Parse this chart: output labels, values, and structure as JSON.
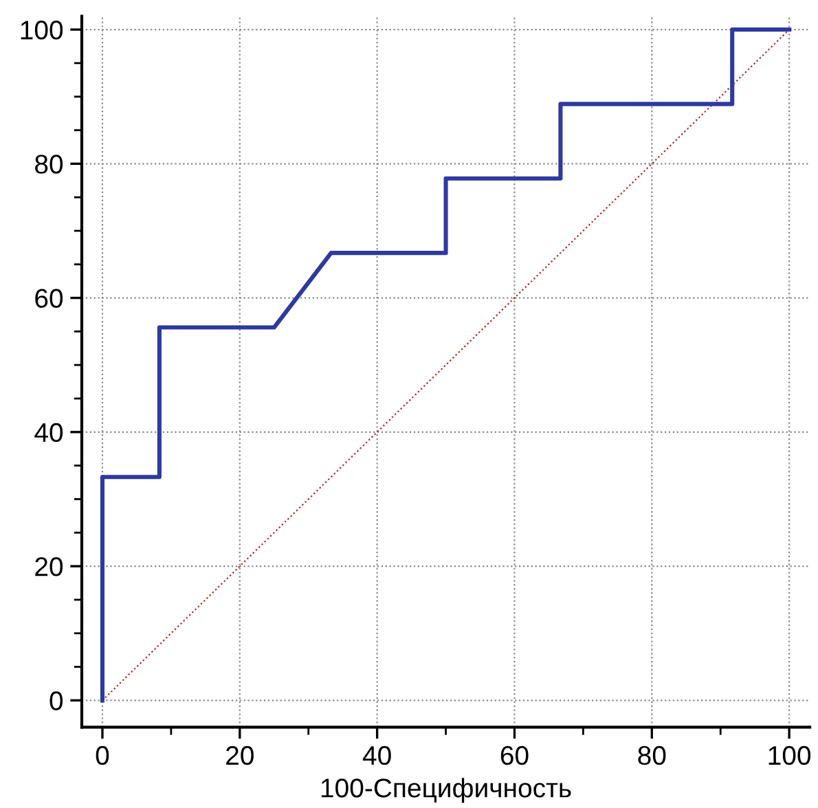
{
  "chart_data": {
    "type": "line",
    "xlabel": "100-Специфичность",
    "series": [
      {
        "color": "#2e3a9e",
        "line_style": "solid",
        "x": [
          0,
          0,
          8.3,
          8.3,
          25,
          33.3,
          50,
          50,
          66.7,
          66.7,
          91.7,
          91.7,
          100
        ],
        "values": [
          0,
          33.3,
          33.3,
          55.6,
          55.6,
          66.7,
          66.7,
          77.8,
          77.8,
          88.9,
          88.9,
          100,
          100
        ]
      },
      {
        "color": "#b22222",
        "line_style": "dotted",
        "x": [
          0,
          100
        ],
        "values": [
          0,
          100
        ]
      }
    ],
    "xlim": [
      -3,
      103
    ],
    "ylim": [
      -4,
      102
    ],
    "xticks": [
      0,
      {
        "value": 10,
        "label": null
      },
      20,
      {
        "value": 30,
        "label": null
      },
      40,
      {
        "value": 50,
        "label": null
      },
      60,
      {
        "value": 70,
        "label": null
      },
      80,
      {
        "value": 90,
        "label": null
      },
      100
    ],
    "yticks": [
      0,
      {
        "value": 5,
        "label": null
      },
      {
        "value": 10,
        "label": null
      },
      {
        "value": 15,
        "label": null
      },
      20,
      {
        "value": 25,
        "label": null
      },
      {
        "value": 30,
        "label": null
      },
      {
        "value": 35,
        "label": null
      },
      40,
      {
        "value": 45,
        "label": null
      },
      {
        "value": 50,
        "label": null
      },
      {
        "value": 55,
        "label": null
      },
      60,
      {
        "value": 65,
        "label": null
      },
      {
        "value": 70,
        "label": null
      },
      {
        "value": 75,
        "label": null
      },
      80,
      {
        "value": 85,
        "label": null
      },
      {
        "value": 90,
        "label": null
      },
      {
        "value": 95,
        "label": null
      },
      100
    ],
    "grid": true,
    "marker": "none"
  }
}
